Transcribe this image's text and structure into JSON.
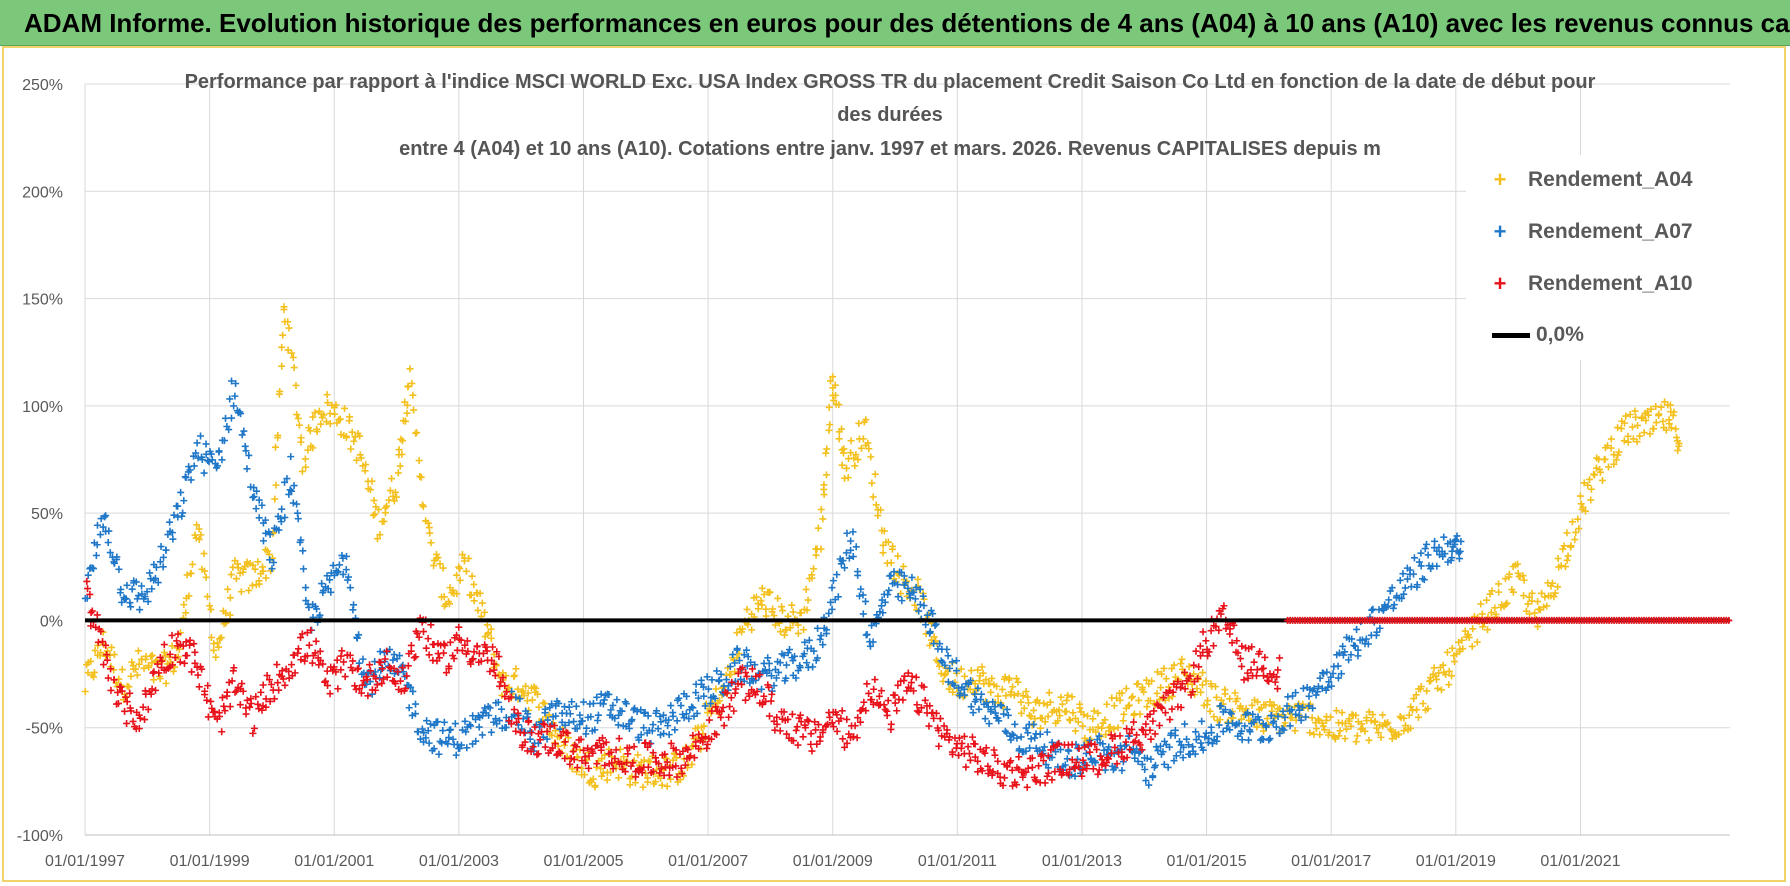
{
  "header": {
    "title": "ADAM Informe. Evolution historique des performances en euros pour des détentions de 4 ans (A04) à 10 ans (A10) avec les revenus connus capitalisés"
  },
  "colors": {
    "banner": "#7bc87b",
    "frame": "#f0d36b",
    "a04": "#f4c01e",
    "a07": "#1f77c8",
    "a10": "#e8121a",
    "zero": "#000000"
  },
  "chart_data": {
    "type": "scatter",
    "title_line1": "Performance par rapport à l'indice MSCI WORLD Exc. USA Index GROSS TR  du placement Credit Saison Co Ltd en fonction de la date de début pour",
    "title_line2": "des durées",
    "title_line3": "entre 4 (A04) et 10 ans (A10).  Cotations entre janv. 1997 et mars. 2026.  Revenus CAPITALISES depuis m",
    "xlim": [
      1997.0,
      2023.4
    ],
    "ylim": [
      -100,
      250
    ],
    "y_ticks": [
      -100,
      -50,
      0,
      50,
      100,
      150,
      200,
      250
    ],
    "y_tick_labels": [
      "-100%",
      "-50%",
      "0%",
      "50%",
      "100%",
      "150%",
      "200%",
      "250%"
    ],
    "x_ticks": [
      1997,
      1999,
      2001,
      2003,
      2005,
      2007,
      2009,
      2011,
      2013,
      2015,
      2017,
      2019,
      2021
    ],
    "x_tick_labels": [
      "01/01/1997",
      "01/01/1999",
      "01/01/2001",
      "01/01/2003",
      "01/01/2005",
      "01/01/2007",
      "01/01/2009",
      "01/01/2011",
      "01/01/2013",
      "01/01/2015",
      "01/01/2017",
      "01/01/2019",
      "01/01/2021"
    ],
    "legend": [
      "Rendement_A04",
      "Rendement_A07",
      "Rendement_A10",
      "0,0%"
    ],
    "series": [
      {
        "name": "Rendement_A04",
        "x": [
          1997.0,
          1997.3,
          1997.6,
          1997.9,
          1998.2,
          1998.5,
          1998.8,
          1999.1,
          1999.4,
          1999.7,
          2000.0,
          2000.2,
          2000.5,
          2000.8,
          2001.1,
          2001.4,
          2001.7,
          2002.0,
          2002.2,
          2002.5,
          2002.8,
          2003.1,
          2003.4,
          2003.7,
          2004.0,
          2004.3,
          2004.6,
          2004.9,
          2005.2,
          2005.5,
          2005.8,
          2006.1,
          2006.4,
          2006.7,
          2007.0,
          2007.3,
          2007.6,
          2007.9,
          2008.2,
          2008.5,
          2008.8,
          2009.0,
          2009.2,
          2009.5,
          2009.8,
          2010.1,
          2010.4,
          2010.7,
          2011.0,
          2011.3,
          2011.6,
          2011.9,
          2012.2,
          2012.5,
          2012.8,
          2013.1,
          2013.4,
          2013.7,
          2014.0,
          2014.3,
          2014.6,
          2014.9,
          2015.2,
          2015.5,
          2015.8,
          2016.1,
          2016.4,
          2016.7,
          2017.0,
          2017.3,
          2017.6,
          2017.9,
          2018.2,
          2018.5,
          2018.8,
          2019.1,
          2019.4,
          2019.7,
          2020.0,
          2020.3,
          2020.6,
          2020.9,
          2021.2,
          2021.5,
          2021.8,
          2022.1,
          2022.4,
          2022.6
        ],
        "values": [
          -30,
          -10,
          -30,
          -20,
          -25,
          -15,
          45,
          -15,
          20,
          20,
          30,
          150,
          75,
          100,
          95,
          80,
          45,
          65,
          115,
          40,
          10,
          25,
          0,
          -30,
          -30,
          -40,
          -55,
          -65,
          -70,
          -65,
          -70,
          -70,
          -70,
          -65,
          -45,
          -30,
          0,
          10,
          0,
          0,
          40,
          115,
          70,
          90,
          40,
          20,
          10,
          -20,
          -30,
          -25,
          -35,
          -30,
          -45,
          -40,
          -40,
          -50,
          -45,
          -40,
          -35,
          -30,
          -25,
          -30,
          -40,
          -40,
          -45,
          -45,
          -45,
          -45,
          -50,
          -50,
          -50,
          -50,
          -45,
          -35,
          -25,
          -15,
          0,
          10,
          20,
          0,
          20,
          45,
          65,
          80,
          90,
          90,
          95,
          85
        ]
      },
      {
        "name": "Rendement_A07",
        "x": [
          1997.0,
          1997.3,
          1997.6,
          1997.9,
          1998.2,
          1998.5,
          1998.8,
          1999.1,
          1999.4,
          1999.7,
          2000.0,
          2000.3,
          2000.6,
          2000.9,
          2001.2,
          2001.5,
          2001.8,
          2002.1,
          2002.4,
          2002.7,
          2003.0,
          2003.3,
          2003.6,
          2003.9,
          2004.2,
          2004.5,
          2004.8,
          2005.1,
          2005.4,
          2005.7,
          2006.0,
          2006.3,
          2006.6,
          2006.9,
          2007.2,
          2007.5,
          2007.8,
          2008.1,
          2008.4,
          2008.7,
          2009.0,
          2009.3,
          2009.6,
          2009.9,
          2010.2,
          2010.5,
          2010.8,
          2011.1,
          2011.4,
          2011.7,
          2012.0,
          2012.3,
          2012.6,
          2012.9,
          2013.2,
          2013.5,
          2013.8,
          2014.1,
          2014.4,
          2014.7,
          2015.0,
          2015.3,
          2015.6,
          2015.9,
          2016.2,
          2016.5,
          2016.8,
          2017.1,
          2017.4,
          2017.7,
          2018.0,
          2018.3,
          2018.6,
          2018.9,
          2019.1
        ],
        "values": [
          10,
          50,
          15,
          10,
          25,
          50,
          80,
          70,
          110,
          60,
          30,
          70,
          0,
          15,
          30,
          -30,
          -20,
          -25,
          -50,
          -55,
          -55,
          -50,
          -45,
          -40,
          -55,
          -45,
          -45,
          -45,
          -40,
          -45,
          -50,
          -50,
          -40,
          -35,
          -30,
          -20,
          -25,
          -25,
          -20,
          -15,
          10,
          40,
          -10,
          15,
          15,
          5,
          -20,
          -30,
          -40,
          -45,
          -55,
          -55,
          -65,
          -65,
          -60,
          -65,
          -60,
          -70,
          -60,
          -55,
          -55,
          -45,
          -50,
          -50,
          -45,
          -40,
          -30,
          -20,
          -10,
          0,
          10,
          20,
          30,
          35,
          30
        ]
      },
      {
        "name": "Rendement_A10",
        "x": [
          1997.0,
          1997.3,
          1997.6,
          1997.9,
          1998.2,
          1998.5,
          1998.8,
          1999.1,
          1999.4,
          1999.7,
          2000.0,
          2000.3,
          2000.6,
          2000.9,
          2001.2,
          2001.5,
          2001.8,
          2002.1,
          2002.4,
          2002.7,
          2003.0,
          2003.3,
          2003.6,
          2003.9,
          2004.2,
          2004.5,
          2004.8,
          2005.1,
          2005.4,
          2005.7,
          2006.0,
          2006.3,
          2006.6,
          2006.9,
          2007.2,
          2007.5,
          2007.8,
          2008.1,
          2008.4,
          2008.7,
          2009.0,
          2009.3,
          2009.6,
          2009.9,
          2010.2,
          2010.5,
          2010.8,
          2011.1,
          2011.4,
          2011.7,
          2012.0,
          2012.3,
          2012.6,
          2012.9,
          2013.2,
          2013.5,
          2013.8,
          2014.1,
          2014.4,
          2014.7,
          2015.0,
          2015.3,
          2015.6,
          2015.9,
          2016.2
        ],
        "values": [
          15,
          -15,
          -40,
          -45,
          -20,
          -10,
          -20,
          -50,
          -30,
          -45,
          -30,
          -20,
          -10,
          -30,
          -20,
          -30,
          -20,
          -30,
          0,
          -20,
          -10,
          -15,
          -20,
          -50,
          -55,
          -55,
          -60,
          -65,
          -60,
          -65,
          -65,
          -65,
          -65,
          -55,
          -45,
          -30,
          -30,
          -45,
          -50,
          -55,
          -45,
          -55,
          -30,
          -45,
          -30,
          -40,
          -55,
          -60,
          -65,
          -70,
          -70,
          -70,
          -65,
          -65,
          -65,
          -60,
          -55,
          -50,
          -40,
          -30,
          -10,
          0,
          -20,
          -20,
          -25
        ]
      }
    ],
    "zero_line": {
      "name": "0,0%",
      "value": 0,
      "x_start": 1997.0,
      "x_end": 2023.4
    },
    "a10_flat": {
      "value": 0,
      "x_start": 2016.3,
      "x_end": 2023.4
    }
  }
}
